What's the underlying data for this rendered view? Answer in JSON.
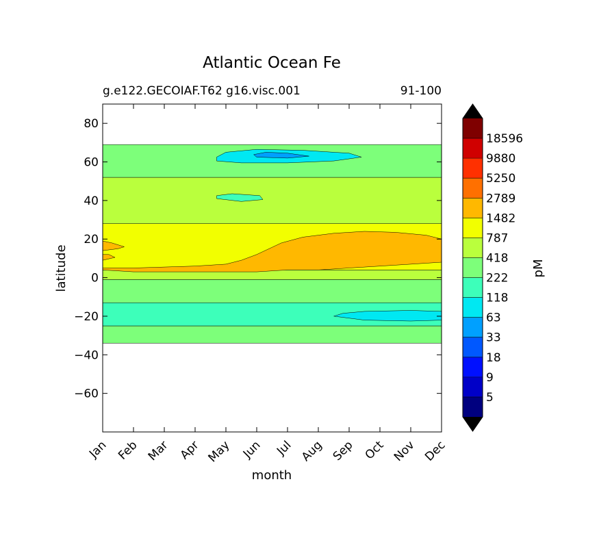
{
  "chart_data": {
    "type": "heatmap",
    "subtype": "filled-contour",
    "title": "Atlantic Ocean Fe",
    "subtitle_left": "g.e122.GECOIAF.T62 g16.visc.001",
    "subtitle_right": "91-100",
    "xlabel": "month",
    "ylabel": "latitude",
    "x_categories": [
      "Jan",
      "Feb",
      "Mar",
      "Apr",
      "May",
      "Jun",
      "Jul",
      "Aug",
      "Sep",
      "Oct",
      "Nov",
      "Dec"
    ],
    "xlim": [
      1,
      12
    ],
    "ylim": [
      -80,
      90
    ],
    "y_ticks": [
      80,
      60,
      40,
      20,
      0,
      -20,
      -40,
      -60
    ],
    "y_tick_labels": [
      "80",
      "60",
      "40",
      "20",
      "0",
      "−20",
      "−40",
      "−60"
    ],
    "data_lat_range": [
      -34,
      69
    ],
    "grid": false,
    "colorbar": {
      "label": "pM",
      "levels": [
        "5",
        "9",
        "18",
        "33",
        "63",
        "118",
        "222",
        "418",
        "787",
        "1482",
        "2789",
        "5250",
        "9880",
        "18596"
      ],
      "colors": [
        "#00007f",
        "#0000c8",
        "#0010ff",
        "#0058ff",
        "#00a0ff",
        "#00e8f2",
        "#3dffba",
        "#7dff7a",
        "#baff3d",
        "#f2ff00",
        "#ffb800",
        "#ff7000",
        "#ff3000",
        "#d00000",
        "#7f0000"
      ],
      "extend_low_color": "#000000",
      "extend_high_color": "#000000"
    },
    "bands": [
      {
        "lat_from": -34,
        "lat_to": -25,
        "level_index": 7,
        "color": "#7dff7a"
      },
      {
        "lat_from": -25,
        "lat_to": -13,
        "level_index": 6,
        "color": "#3dffba"
      },
      {
        "lat_from": -13,
        "lat_to": -1,
        "level_index": 7,
        "color": "#7dff7a"
      },
      {
        "lat_from": -1,
        "lat_to": 4,
        "level_index": 8,
        "color": "#baff3d"
      },
      {
        "lat_from": 4,
        "lat_to": 28,
        "level_index": 9,
        "color": "#f2ff00"
      },
      {
        "lat_from": 28,
        "lat_to": 52,
        "level_index": 8,
        "color": "#baff3d"
      },
      {
        "lat_from": 52,
        "lat_to": 69,
        "level_index": 7,
        "color": "#7dff7a"
      }
    ],
    "features": [
      {
        "desc": "elevated Fe region Jan-Dec near equator north",
        "level_index": 10,
        "color": "#ffb800"
      },
      {
        "desc": "low Fe pocket near 60-65N Jun-Aug",
        "level_index": 5,
        "color": "#00e8f2"
      },
      {
        "desc": "lowest Fe core near 63N Jul",
        "level_index": 4,
        "color": "#00a0ff"
      },
      {
        "desc": "low Fe pocket near 40N May-Jun",
        "level_index": 6,
        "color": "#3dffba"
      },
      {
        "desc": "low Fe tongue near 20S Sep-Dec",
        "level_index": 5,
        "color": "#00e8f2"
      }
    ]
  }
}
